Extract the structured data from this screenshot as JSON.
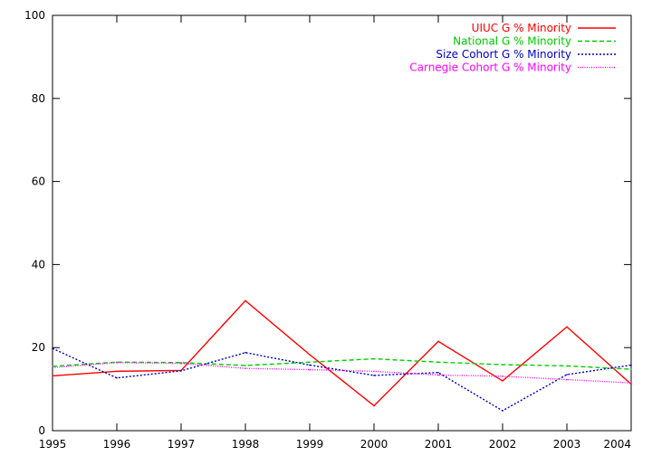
{
  "chart_data": {
    "type": "line",
    "x": [
      1995,
      1996,
      1997,
      1998,
      1999,
      2000,
      2001,
      2002,
      2003,
      2004
    ],
    "xlim": [
      1995,
      2004
    ],
    "ylim": [
      0,
      100
    ],
    "xticks": [
      "1995",
      "1996",
      "1997",
      "1998",
      "1999",
      "2000",
      "2001",
      "2002",
      "2003",
      "2004"
    ],
    "yticks": [
      "0",
      "20",
      "40",
      "60",
      "80",
      "100"
    ],
    "grid": false,
    "legend_position": "top-right",
    "series": [
      {
        "name": "UIUC G % Minority",
        "color": "#ff0000",
        "dash": "solid",
        "values": [
          13.2,
          14.3,
          14.5,
          31.3,
          18.3,
          6.0,
          21.5,
          12.0,
          25.0,
          11.2
        ]
      },
      {
        "name": "National G % Minority",
        "color": "#00cc00",
        "dash": "dashed",
        "values": [
          15.5,
          16.5,
          16.4,
          15.7,
          16.5,
          17.3,
          16.5,
          15.9,
          15.6,
          14.8
        ]
      },
      {
        "name": "Size Cohort G % Minority",
        "color": "#0000cc",
        "dash": "dotted",
        "values": [
          19.8,
          12.7,
          14.4,
          18.8,
          15.8,
          13.3,
          14.0,
          4.8,
          13.5,
          15.8
        ]
      },
      {
        "name": "Carnegie Cohort G % Minority",
        "color": "#ff00ff",
        "dash": "fine-dotted",
        "values": [
          15.2,
          16.4,
          16.2,
          15.0,
          14.7,
          14.3,
          13.4,
          13.1,
          12.3,
          11.5
        ]
      }
    ]
  }
}
